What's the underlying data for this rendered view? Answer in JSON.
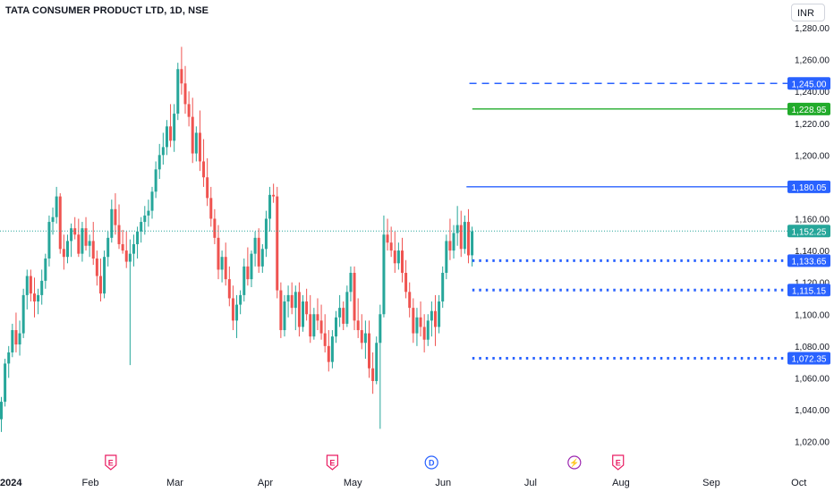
{
  "header": {
    "symbol_title": "TATA CONSUMER PRODUCT LTD, 1D, NSE",
    "currency_button": "INR"
  },
  "colors": {
    "up": "#26a69a",
    "down": "#ef5350",
    "blue_line": "#2962ff",
    "green_line": "#22ab2b",
    "blue_label_bg": "#2962ff",
    "green_label_bg": "#22ab2b",
    "last_price_bg": "#26a69a",
    "axis_text": "#131722",
    "event_earnings": "#e91e63",
    "event_dividend": "#2962ff",
    "event_split": "#9c27b0"
  },
  "chart_data": {
    "type": "candlestick",
    "y_axis": {
      "range": [
        1013,
        1290
      ],
      "ticks": [
        "1,020.00",
        "1,040.00",
        "1,060.00",
        "1,080.00",
        "1,100.00",
        "1,120.00",
        "1,140.00",
        "1,160.00",
        "1,180.00",
        "1,200.00",
        "1,220.00",
        "1,240.00",
        "1,260.00",
        "1,280.00"
      ],
      "tick_values": [
        1020,
        1040,
        1060,
        1080,
        1100,
        1120,
        1140,
        1160,
        1180,
        1200,
        1220,
        1240,
        1260,
        1280
      ]
    },
    "x_axis": {
      "labels": [
        {
          "text": "2024",
          "date": "2024-01-01"
        },
        {
          "text": "Feb",
          "date": "2024-02-01"
        },
        {
          "text": "Mar",
          "date": "2024-03-01"
        },
        {
          "text": "Apr",
          "date": "2024-04-01"
        },
        {
          "text": "May",
          "date": "2024-05-01"
        },
        {
          "text": "Jun",
          "date": "2024-06-01"
        },
        {
          "text": "Jul",
          "date": "2024-07-01"
        },
        {
          "text": "Aug",
          "date": "2024-08-01"
        },
        {
          "text": "Sep",
          "date": "2024-09-01"
        },
        {
          "text": "Oct",
          "date": "2024-10-01"
        }
      ]
    },
    "last_price": {
      "value": 1152.25,
      "label": "1,152.25"
    },
    "horizontal_levels": [
      {
        "value": 1245.0,
        "label": "1,245.00",
        "style": "dashed",
        "color": "blue",
        "start_date": "2024-06-10"
      },
      {
        "value": 1228.95,
        "label": "1,228.95",
        "style": "solid",
        "color": "green",
        "start_date": "2024-06-11"
      },
      {
        "value": 1180.05,
        "label": "1,180.05",
        "style": "solid",
        "color": "blue",
        "start_date": "2024-06-09"
      },
      {
        "value": 1133.65,
        "label": "1,133.65",
        "style": "dotted",
        "color": "blue",
        "start_date": "2024-06-11"
      },
      {
        "value": 1115.15,
        "label": "1,115.15",
        "style": "dotted",
        "color": "blue",
        "start_date": "2024-06-11"
      },
      {
        "value": 1072.35,
        "label": "1,072.35",
        "style": "dotted",
        "color": "blue",
        "start_date": "2024-06-11"
      }
    ],
    "events": [
      {
        "type": "earnings",
        "letter": "E",
        "date": "2024-02-08"
      },
      {
        "type": "earnings",
        "letter": "E",
        "date": "2024-04-24"
      },
      {
        "type": "dividend",
        "letter": "D",
        "date": "2024-05-28"
      },
      {
        "type": "split",
        "letter": "⚡",
        "date": "2024-07-16"
      },
      {
        "type": "earnings",
        "letter": "E",
        "date": "2024-07-31"
      }
    ],
    "candles": [
      [
        1034,
        1048,
        1026,
        1045
      ],
      [
        1045,
        1072,
        1042,
        1069
      ],
      [
        1069,
        1080,
        1060,
        1076
      ],
      [
        1076,
        1094,
        1073,
        1090
      ],
      [
        1090,
        1101,
        1076,
        1081
      ],
      [
        1081,
        1096,
        1074,
        1088
      ],
      [
        1088,
        1116,
        1085,
        1112
      ],
      [
        1112,
        1128,
        1103,
        1124
      ],
      [
        1124,
        1128,
        1108,
        1113
      ],
      [
        1113,
        1123,
        1098,
        1108
      ],
      [
        1108,
        1116,
        1100,
        1112
      ],
      [
        1112,
        1128,
        1106,
        1121
      ],
      [
        1121,
        1138,
        1116,
        1135
      ],
      [
        1135,
        1162,
        1130,
        1158
      ],
      [
        1158,
        1167,
        1150,
        1161
      ],
      [
        1161,
        1180,
        1157,
        1174
      ],
      [
        1174,
        1176,
        1138,
        1141
      ],
      [
        1141,
        1150,
        1128,
        1136
      ],
      [
        1136,
        1150,
        1132,
        1146
      ],
      [
        1146,
        1157,
        1136,
        1154
      ],
      [
        1154,
        1161,
        1147,
        1150
      ],
      [
        1150,
        1160,
        1136,
        1138
      ],
      [
        1138,
        1158,
        1133,
        1154
      ],
      [
        1154,
        1161,
        1140,
        1143
      ],
      [
        1143,
        1150,
        1136,
        1146
      ],
      [
        1146,
        1158,
        1131,
        1135
      ],
      [
        1135,
        1140,
        1118,
        1124
      ],
      [
        1124,
        1135,
        1108,
        1113
      ],
      [
        1113,
        1140,
        1110,
        1136
      ],
      [
        1136,
        1152,
        1130,
        1148
      ],
      [
        1148,
        1172,
        1145,
        1166
      ],
      [
        1166,
        1176,
        1150,
        1156
      ],
      [
        1156,
        1169,
        1141,
        1144
      ],
      [
        1144,
        1153,
        1138,
        1140
      ],
      [
        1140,
        1152,
        1129,
        1133
      ],
      [
        1133,
        1147,
        1068,
        1138
      ],
      [
        1138,
        1150,
        1130,
        1144
      ],
      [
        1144,
        1155,
        1135,
        1152
      ],
      [
        1152,
        1161,
        1145,
        1158
      ],
      [
        1158,
        1168,
        1150,
        1162
      ],
      [
        1162,
        1172,
        1155,
        1165
      ],
      [
        1165,
        1180,
        1160,
        1177
      ],
      [
        1177,
        1196,
        1173,
        1191
      ],
      [
        1191,
        1207,
        1185,
        1200
      ],
      [
        1200,
        1214,
        1194,
        1205
      ],
      [
        1205,
        1222,
        1200,
        1218
      ],
      [
        1218,
        1232,
        1205,
        1209
      ],
      [
        1209,
        1232,
        1202,
        1226
      ],
      [
        1226,
        1258,
        1222,
        1254
      ],
      [
        1254,
        1268,
        1238,
        1245
      ],
      [
        1245,
        1256,
        1226,
        1232
      ],
      [
        1232,
        1240,
        1218,
        1224
      ],
      [
        1224,
        1236,
        1195,
        1201
      ],
      [
        1201,
        1218,
        1196,
        1214
      ],
      [
        1214,
        1228,
        1190,
        1196
      ],
      [
        1196,
        1210,
        1180,
        1186
      ],
      [
        1186,
        1198,
        1168,
        1173
      ],
      [
        1173,
        1180,
        1155,
        1160
      ],
      [
        1160,
        1166,
        1144,
        1148
      ],
      [
        1148,
        1156,
        1122,
        1128
      ],
      [
        1128,
        1140,
        1120,
        1136
      ],
      [
        1136,
        1145,
        1118,
        1122
      ],
      [
        1122,
        1130,
        1105,
        1110
      ],
      [
        1110,
        1118,
        1090,
        1096
      ],
      [
        1096,
        1112,
        1085,
        1106
      ],
      [
        1106,
        1115,
        1100,
        1112
      ],
      [
        1112,
        1135,
        1108,
        1130
      ],
      [
        1130,
        1142,
        1118,
        1122
      ],
      [
        1122,
        1140,
        1117,
        1138
      ],
      [
        1138,
        1152,
        1130,
        1148
      ],
      [
        1148,
        1154,
        1126,
        1130
      ],
      [
        1130,
        1144,
        1126,
        1141
      ],
      [
        1141,
        1165,
        1136,
        1160
      ],
      [
        1160,
        1180,
        1152,
        1175
      ],
      [
        1175,
        1182,
        1170,
        1174
      ],
      [
        1174,
        1180,
        1110,
        1115
      ],
      [
        1115,
        1120,
        1085,
        1090
      ],
      [
        1090,
        1112,
        1086,
        1108
      ],
      [
        1108,
        1118,
        1098,
        1112
      ],
      [
        1112,
        1120,
        1100,
        1104
      ],
      [
        1104,
        1118,
        1090,
        1114
      ],
      [
        1114,
        1120,
        1086,
        1092
      ],
      [
        1092,
        1112,
        1089,
        1108
      ],
      [
        1108,
        1116,
        1096,
        1100
      ],
      [
        1100,
        1112,
        1082,
        1086
      ],
      [
        1086,
        1104,
        1084,
        1100
      ],
      [
        1100,
        1110,
        1090,
        1096
      ],
      [
        1096,
        1106,
        1084,
        1088
      ],
      [
        1088,
        1100,
        1076,
        1080
      ],
      [
        1080,
        1090,
        1064,
        1070
      ],
      [
        1070,
        1090,
        1066,
        1086
      ],
      [
        1086,
        1102,
        1082,
        1098
      ],
      [
        1098,
        1112,
        1092,
        1104
      ],
      [
        1104,
        1108,
        1090,
        1094
      ],
      [
        1094,
        1118,
        1092,
        1114
      ],
      [
        1114,
        1130,
        1108,
        1126
      ],
      [
        1126,
        1130,
        1090,
        1096
      ],
      [
        1096,
        1110,
        1085,
        1090
      ],
      [
        1090,
        1100,
        1078,
        1082
      ],
      [
        1082,
        1096,
        1072,
        1088
      ],
      [
        1088,
        1096,
        1060,
        1066
      ],
      [
        1066,
        1076,
        1050,
        1058
      ],
      [
        1058,
        1086,
        1056,
        1082
      ],
      [
        1082,
        1106,
        1028,
        1100
      ],
      [
        1100,
        1162,
        1098,
        1150
      ],
      [
        1150,
        1160,
        1140,
        1145
      ],
      [
        1145,
        1155,
        1136,
        1140
      ],
      [
        1140,
        1152,
        1126,
        1132
      ],
      [
        1132,
        1145,
        1128,
        1140
      ],
      [
        1140,
        1148,
        1120,
        1126
      ],
      [
        1126,
        1134,
        1110,
        1114
      ],
      [
        1114,
        1120,
        1098,
        1104
      ],
      [
        1104,
        1110,
        1082,
        1088
      ],
      [
        1088,
        1104,
        1080,
        1098
      ],
      [
        1098,
        1108,
        1086,
        1092
      ],
      [
        1092,
        1100,
        1076,
        1084
      ],
      [
        1084,
        1100,
        1080,
        1096
      ],
      [
        1096,
        1108,
        1086,
        1102
      ],
      [
        1102,
        1112,
        1080,
        1092
      ],
      [
        1092,
        1112,
        1088,
        1108
      ],
      [
        1108,
        1130,
        1104,
        1126
      ],
      [
        1126,
        1150,
        1122,
        1146
      ],
      [
        1146,
        1160,
        1134,
        1140
      ],
      [
        1140,
        1156,
        1135,
        1151
      ],
      [
        1151,
        1168,
        1143,
        1156
      ],
      [
        1156,
        1165,
        1136,
        1141
      ],
      [
        1141,
        1162,
        1138,
        1158
      ],
      [
        1158,
        1166,
        1132,
        1137
      ],
      [
        1137,
        1155,
        1130,
        1152
      ]
    ]
  }
}
